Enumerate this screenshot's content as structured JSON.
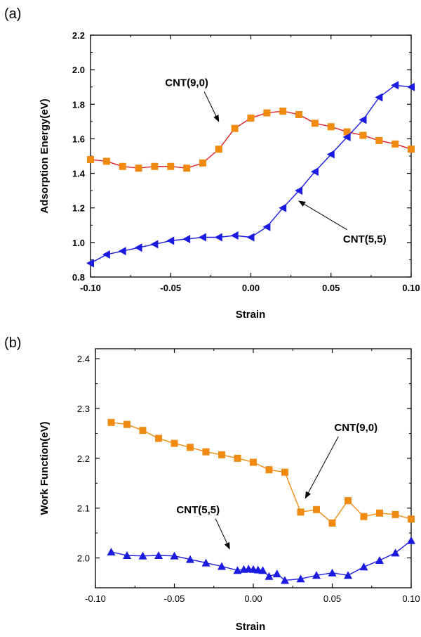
{
  "chart_data": [
    {
      "panel_label": "(a)",
      "type": "line",
      "xlabel": "Strain",
      "ylabel": "Adsorption Energy(eV)",
      "xlim": [
        -0.1,
        0.1
      ],
      "ylim": [
        0.8,
        2.2
      ],
      "x_ticks": [
        "-0.10",
        "-0.05",
        "0.00",
        "0.05",
        "0.10"
      ],
      "y_ticks": [
        "0.8",
        "1.0",
        "1.2",
        "1.4",
        "1.6",
        "1.8",
        "2.0",
        "2.2"
      ],
      "bold_ticks": true,
      "series": [
        {
          "name": "CNT(9,0)",
          "color": "#f08a10",
          "line_color": "#e02020",
          "marker": "square",
          "x": [
            -0.1,
            -0.09,
            -0.08,
            -0.07,
            -0.06,
            -0.05,
            -0.04,
            -0.03,
            -0.02,
            -0.01,
            0.0,
            0.01,
            0.02,
            0.03,
            0.04,
            0.05,
            0.06,
            0.07,
            0.08,
            0.09,
            0.1
          ],
          "y": [
            1.48,
            1.47,
            1.44,
            1.43,
            1.44,
            1.44,
            1.43,
            1.46,
            1.54,
            1.66,
            1.72,
            1.75,
            1.76,
            1.74,
            1.69,
            1.67,
            1.64,
            1.62,
            1.59,
            1.57,
            1.54
          ]
        },
        {
          "name": "CNT(5,5)",
          "color": "#1a1ae0",
          "line_color": "#1a1ae0",
          "marker": "triangle-left",
          "x": [
            -0.1,
            -0.09,
            -0.08,
            -0.07,
            -0.06,
            -0.05,
            -0.04,
            -0.03,
            -0.02,
            -0.01,
            0.0,
            0.01,
            0.02,
            0.03,
            0.04,
            0.05,
            0.06,
            0.07,
            0.08,
            0.09,
            0.1
          ],
          "y": [
            0.88,
            0.93,
            0.95,
            0.97,
            0.99,
            1.01,
            1.02,
            1.03,
            1.03,
            1.04,
            1.03,
            1.09,
            1.2,
            1.3,
            1.41,
            1.51,
            1.61,
            1.71,
            1.84,
            1.91,
            1.9
          ]
        }
      ],
      "annotations": [
        {
          "text": "CNT(9,0)",
          "x": -0.04,
          "y": 1.905,
          "arrow_to": [
            -0.02,
            1.7
          ]
        },
        {
          "text": "CNT(5,5)",
          "x": 0.071,
          "y": 1.0,
          "arrow_to": [
            0.03,
            1.24
          ]
        }
      ]
    },
    {
      "panel_label": "(b)",
      "type": "line",
      "xlabel": "Strain",
      "ylabel": "Work Function(eV)",
      "xlim": [
        -0.1,
        0.1
      ],
      "ylim": [
        1.94,
        2.42
      ],
      "x_ticks": [
        "-0.10",
        "-0.05",
        "0.00",
        "0.05",
        "0.10"
      ],
      "y_ticks": [
        "2.0",
        "2.1",
        "2.2",
        "2.3",
        "2.4"
      ],
      "bold_ticks": false,
      "series": [
        {
          "name": "CNT(9,0)",
          "color": "#f08a10",
          "line_color": "#f08a10",
          "marker": "square",
          "x": [
            -0.09,
            -0.08,
            -0.07,
            -0.06,
            -0.05,
            -0.04,
            -0.03,
            -0.02,
            -0.01,
            0.0,
            0.01,
            0.02,
            0.03,
            0.04,
            0.05,
            0.06,
            0.07,
            0.08,
            0.09,
            0.1
          ],
          "y": [
            2.272,
            2.268,
            2.256,
            2.24,
            2.23,
            2.222,
            2.213,
            2.207,
            2.2,
            2.192,
            2.177,
            2.172,
            2.092,
            2.097,
            2.07,
            2.115,
            2.083,
            2.09,
            2.087,
            2.078
          ]
        },
        {
          "name": "CNT(5,5)",
          "color": "#1a1ae0",
          "line_color": "#1a1ae0",
          "marker": "triangle-up",
          "x": [
            -0.09,
            -0.08,
            -0.07,
            -0.06,
            -0.05,
            -0.04,
            -0.03,
            -0.02,
            -0.01,
            -0.006,
            -0.003,
            0.0,
            0.003,
            0.006,
            0.01,
            0.015,
            0.02,
            0.03,
            0.04,
            0.05,
            0.06,
            0.07,
            0.08,
            0.09,
            0.1
          ],
          "y": [
            2.012,
            2.005,
            2.004,
            2.005,
            2.004,
            1.997,
            1.99,
            1.983,
            1.975,
            1.977,
            1.978,
            1.977,
            1.976,
            1.975,
            1.963,
            1.968,
            1.955,
            1.958,
            1.965,
            1.97,
            1.965,
            1.982,
            1.995,
            2.01,
            2.035
          ]
        }
      ],
      "annotations": [
        {
          "text": "CNT(9,0)",
          "x": 0.065,
          "y": 2.255,
          "arrow_to": [
            0.033,
            2.12
          ]
        },
        {
          "text": "CNT(5,5)",
          "x": -0.035,
          "y": 2.09,
          "arrow_to": [
            -0.015,
            2.018
          ]
        }
      ]
    }
  ]
}
